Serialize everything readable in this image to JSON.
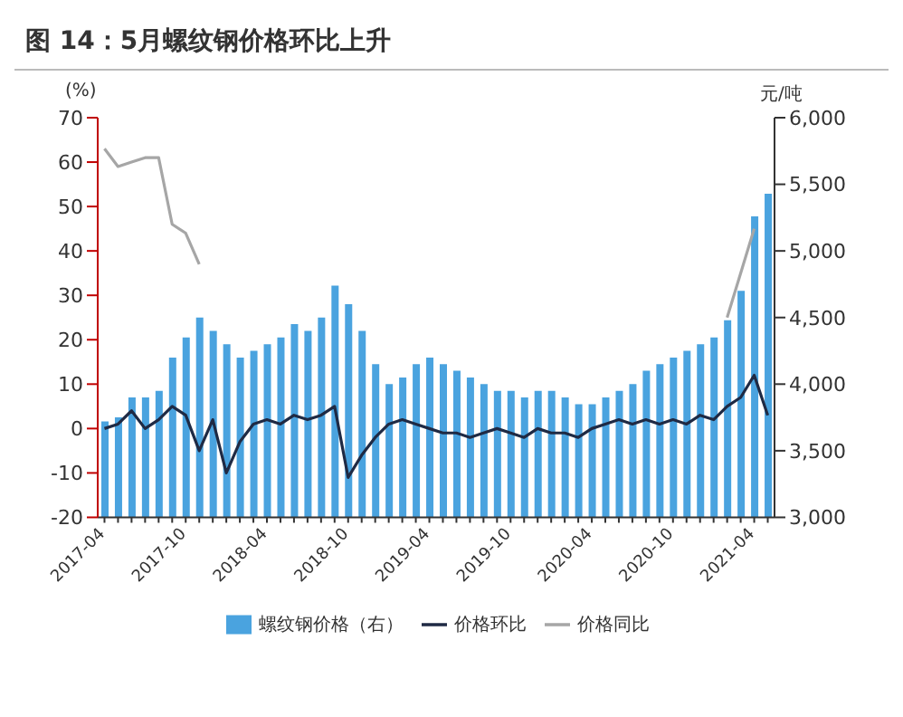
{
  "chart_data": {
    "type": "bar",
    "title": "图 14：5月螺纹钢价格环比上升",
    "ylabel": "(%)",
    "y2label": "元/吨",
    "categories": [
      "2017-04",
      null,
      null,
      null,
      null,
      null,
      "2017-10",
      null,
      null,
      null,
      null,
      null,
      "2018-04",
      null,
      null,
      null,
      null,
      null,
      "2018-10",
      null,
      null,
      null,
      null,
      null,
      "2019-04",
      null,
      null,
      null,
      null,
      null,
      "2019-10",
      null,
      null,
      null,
      null,
      null,
      "2020-04",
      null,
      null,
      null,
      null,
      null,
      "2020-10",
      null,
      null,
      null,
      null,
      null,
      "2021-04",
      null
    ],
    "series": [
      {
        "name": "螺纹钢价格（右）",
        "axis": "y2",
        "color": "#4aa3df",
        "values": [
          3720,
          3750,
          3900,
          3900,
          3950,
          4200,
          4350,
          4500,
          4400,
          4300,
          4200,
          4250,
          4300,
          4350,
          4450,
          4400,
          4500,
          4740,
          4600,
          4400,
          4150,
          4000,
          4050,
          4150,
          4200,
          4150,
          4100,
          4050,
          4000,
          3950,
          3950,
          3900,
          3950,
          3950,
          3900,
          3850,
          3850,
          3900,
          3950,
          4000,
          4100,
          4150,
          4200,
          4250,
          4300,
          4350,
          4480,
          4700,
          5260,
          5430
        ]
      },
      {
        "name": "价格环比",
        "type": "line",
        "color": "#1f2a44",
        "values": [
          0,
          1,
          4,
          0,
          2,
          5,
          3,
          -5,
          2,
          -10,
          -3,
          1,
          2,
          1,
          3,
          2,
          3,
          5,
          -11,
          -6,
          -2,
          1,
          2,
          1,
          0,
          -1,
          -1,
          -2,
          -1,
          0,
          -1,
          -2,
          0,
          -1,
          -1,
          -2,
          0,
          1,
          2,
          1,
          2,
          1,
          2,
          1,
          3,
          2,
          5,
          7,
          12,
          3
        ]
      },
      {
        "name": "价格同比",
        "type": "line",
        "color": "#a6a6a6",
        "values": [
          63,
          59,
          60,
          61,
          61,
          46,
          44,
          37,
          null,
          null,
          null,
          null,
          null,
          null,
          null,
          null,
          null,
          null,
          null,
          null,
          null,
          null,
          null,
          null,
          null,
          null,
          null,
          null,
          null,
          null,
          null,
          null,
          null,
          null,
          null,
          null,
          null,
          null,
          null,
          null,
          null,
          null,
          null,
          null,
          null,
          null,
          25,
          35,
          45,
          null
        ]
      }
    ],
    "ylim": [
      -20,
      70
    ],
    "yticks": [
      -20,
      -10,
      0,
      10,
      20,
      30,
      40,
      50,
      60,
      70
    ],
    "y2lim": [
      3000,
      6000
    ],
    "y2ticks": [
      {
        "value": 3000,
        "label": "3,000"
      },
      {
        "value": 3500,
        "label": "3,500"
      },
      {
        "value": 4000,
        "label": "4,000"
      },
      {
        "value": 4500,
        "label": "4,500"
      },
      {
        "value": 5000,
        "label": "5,000"
      },
      {
        "value": 5500,
        "label": "5,500"
      },
      {
        "value": 6000,
        "label": "6,000"
      }
    ],
    "grid": false,
    "legend": "bottom",
    "marker": "none",
    "line_style": "solid"
  }
}
